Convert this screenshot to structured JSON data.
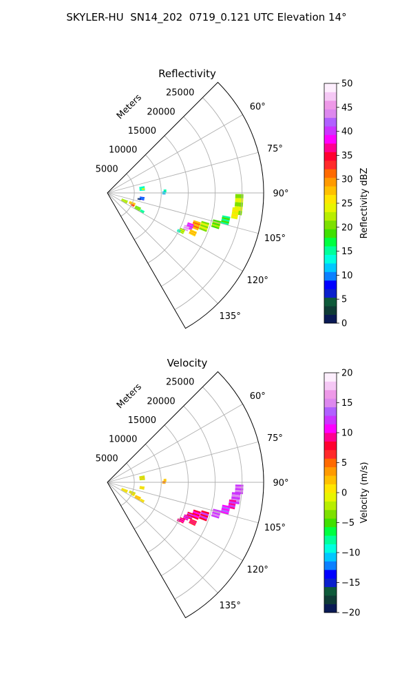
{
  "title": "SKYLER-HU  SN14_202  0719_0.121 UTC Elevation 14°",
  "chart_data": [
    {
      "type": "heatmap",
      "subtype": "polar-sector (radar PPI)",
      "title": "Reflectivity",
      "radial_label": "Meters",
      "range_ticks": [
        "5000",
        "10000",
        "15000",
        "20000",
        "25000"
      ],
      "range_values": [
        5000,
        10000,
        15000,
        20000,
        25000
      ],
      "rmax": 29000,
      "azimuth_range_deg": [
        45,
        150
      ],
      "azimuth_ticks": [
        "60°",
        "75°",
        "90°",
        "105°",
        "120°",
        "135°"
      ],
      "azimuth_values": [
        60,
        75,
        90,
        105,
        120,
        135
      ],
      "grid": true,
      "colorbar": {
        "label": "Reflectivity dBZ",
        "min": 0,
        "max": 50,
        "ticks": [
          "0",
          "5",
          "10",
          "15",
          "20",
          "25",
          "30",
          "35",
          "40",
          "45",
          "50"
        ],
        "tick_values": [
          0,
          5,
          10,
          15,
          20,
          25,
          30,
          35,
          40,
          45,
          50
        ],
        "colors": [
          "#0a1a55",
          "#0f3b36",
          "#0e5a3a",
          "#0a20cc",
          "#0000ff",
          "#0b80ff",
          "#00c8ff",
          "#00ffe0",
          "#00ff9a",
          "#00ff40",
          "#40e000",
          "#7de000",
          "#b8ee00",
          "#e8f500",
          "#ffe600",
          "#ffc000",
          "#ff9a00",
          "#ff6a00",
          "#ff2a2a",
          "#ff0030",
          "#ff0090",
          "#ff00ff",
          "#cc33ff",
          "#b060ff",
          "#dd88ee",
          "#ee99e8",
          "#f5c8f5",
          "#fdeefd"
        ]
      },
      "echoes": [
        {
          "az": 83,
          "r": 6500,
          "dr": 1000,
          "daz": 7,
          "value": 14
        },
        {
          "az": 84,
          "r": 6700,
          "dr": 500,
          "daz": 3,
          "value": 25
        },
        {
          "az": 88,
          "r": 10700,
          "dr": 500,
          "daz": 3,
          "value": 15
        },
        {
          "az": 90,
          "r": 10500,
          "dr": 600,
          "daz": 3,
          "value": 12
        },
        {
          "az": 99,
          "r": 6500,
          "dr": 900,
          "daz": 5,
          "value": 10
        },
        {
          "az": 101,
          "r": 6000,
          "dr": 600,
          "daz": 3,
          "value": 5
        },
        {
          "az": 115,
          "r": 3500,
          "dr": 1200,
          "daz": 8,
          "value": 22
        },
        {
          "az": 113,
          "r": 5000,
          "dr": 1200,
          "daz": 6,
          "value": 28
        },
        {
          "az": 116,
          "r": 5200,
          "dr": 700,
          "daz": 4,
          "value": 33
        },
        {
          "az": 117,
          "r": 6300,
          "dr": 1100,
          "daz": 6,
          "value": 20
        },
        {
          "az": 118,
          "r": 7300,
          "dr": 800,
          "daz": 4,
          "value": 15
        },
        {
          "az": 95,
          "r": 24500,
          "dr": 1500,
          "daz": 9,
          "value": 22
        },
        {
          "az": 99,
          "r": 24000,
          "dr": 1200,
          "daz": 5,
          "value": 25
        },
        {
          "az": 103,
          "r": 22500,
          "dr": 1500,
          "daz": 4,
          "value": 17
        },
        {
          "az": 106,
          "r": 21000,
          "dr": 1500,
          "daz": 4,
          "value": 20
        },
        {
          "az": 109,
          "r": 19000,
          "dr": 1500,
          "daz": 5,
          "value": 22
        },
        {
          "az": 110,
          "r": 17500,
          "dr": 1400,
          "daz": 5,
          "value": 30
        },
        {
          "az": 112,
          "r": 16500,
          "dr": 1200,
          "daz": 4,
          "value": 40
        },
        {
          "az": 114,
          "r": 16000,
          "dr": 1000,
          "daz": 3,
          "value": 45
        },
        {
          "az": 115,
          "r": 17500,
          "dr": 1300,
          "daz": 3,
          "value": 28
        },
        {
          "az": 117,
          "r": 15500,
          "dr": 1000,
          "daz": 3,
          "value": 22
        },
        {
          "az": 118,
          "r": 15000,
          "dr": 600,
          "daz": 2,
          "value": 14
        }
      ]
    },
    {
      "type": "heatmap",
      "subtype": "polar-sector (radar PPI)",
      "title": "Velocity",
      "radial_label": "Meters",
      "range_ticks": [
        "5000",
        "10000",
        "15000",
        "20000",
        "25000"
      ],
      "range_values": [
        5000,
        10000,
        15000,
        20000,
        25000
      ],
      "rmax": 29000,
      "azimuth_range_deg": [
        45,
        150
      ],
      "azimuth_ticks": [
        "60°",
        "75°",
        "90°",
        "105°",
        "120°",
        "135°"
      ],
      "azimuth_values": [
        60,
        75,
        90,
        105,
        120,
        135
      ],
      "grid": true,
      "colorbar": {
        "label": "Velocity (m/s)",
        "min": -20,
        "max": 20,
        "ticks": [
          "−20",
          "−15",
          "−10",
          "−5",
          "0",
          "5",
          "10",
          "15",
          "20"
        ],
        "tick_values": [
          -20,
          -15,
          -10,
          -5,
          0,
          5,
          10,
          15,
          20
        ],
        "colors": [
          "#0a1a55",
          "#0f3b36",
          "#0e5a3a",
          "#0a20cc",
          "#0000ff",
          "#0b80ff",
          "#00c8ff",
          "#00ffe0",
          "#00ff9a",
          "#00ff40",
          "#40e000",
          "#7de000",
          "#b8ee00",
          "#e8f500",
          "#ffe600",
          "#ffc000",
          "#ff9a00",
          "#ff6a00",
          "#ff2a2a",
          "#ff0030",
          "#ff0090",
          "#ff00ff",
          "#cc33ff",
          "#b060ff",
          "#dd88ee",
          "#ee99e8",
          "#f5c8f5",
          "#fdeefd"
        ]
      },
      "echoes": [
        {
          "az": 83,
          "r": 6500,
          "dr": 1000,
          "daz": 7,
          "value": 0
        },
        {
          "az": 88,
          "r": 10700,
          "dr": 500,
          "daz": 3,
          "value": 2
        },
        {
          "az": 90,
          "r": 10500,
          "dr": 600,
          "daz": 3,
          "value": 3
        },
        {
          "az": 99,
          "r": 6500,
          "dr": 900,
          "daz": 5,
          "value": 1
        },
        {
          "az": 115,
          "r": 3500,
          "dr": 1200,
          "daz": 8,
          "value": 1
        },
        {
          "az": 113,
          "r": 5000,
          "dr": 1200,
          "daz": 6,
          "value": 0
        },
        {
          "az": 116,
          "r": 5200,
          "dr": 700,
          "daz": 4,
          "value": 1
        },
        {
          "az": 117,
          "r": 6300,
          "dr": 1100,
          "daz": 6,
          "value": 2
        },
        {
          "az": 118,
          "r": 7300,
          "dr": 800,
          "daz": 4,
          "value": 1
        },
        {
          "az": 93,
          "r": 24500,
          "dr": 1500,
          "daz": 4,
          "value": 13
        },
        {
          "az": 97,
          "r": 24000,
          "dr": 1600,
          "daz": 5,
          "value": 14
        },
        {
          "az": 100,
          "r": 23500,
          "dr": 1300,
          "daz": 4,
          "value": 11
        },
        {
          "az": 103,
          "r": 22500,
          "dr": 1500,
          "daz": 4,
          "value": 12
        },
        {
          "az": 106,
          "r": 21000,
          "dr": 1500,
          "daz": 4,
          "value": 14
        },
        {
          "az": 109,
          "r": 19000,
          "dr": 1500,
          "daz": 5,
          "value": 10
        },
        {
          "az": 110,
          "r": 17500,
          "dr": 1400,
          "daz": 5,
          "value": 9
        },
        {
          "az": 112,
          "r": 16500,
          "dr": 1200,
          "daz": 4,
          "value": 10
        },
        {
          "az": 114,
          "r": 16000,
          "dr": 1000,
          "daz": 3,
          "value": 11
        },
        {
          "az": 115,
          "r": 17500,
          "dr": 1300,
          "daz": 3,
          "value": 8
        },
        {
          "az": 117,
          "r": 15500,
          "dr": 1000,
          "daz": 3,
          "value": 9
        },
        {
          "az": 118,
          "r": 15000,
          "dr": 600,
          "daz": 2,
          "value": 10
        }
      ]
    }
  ]
}
